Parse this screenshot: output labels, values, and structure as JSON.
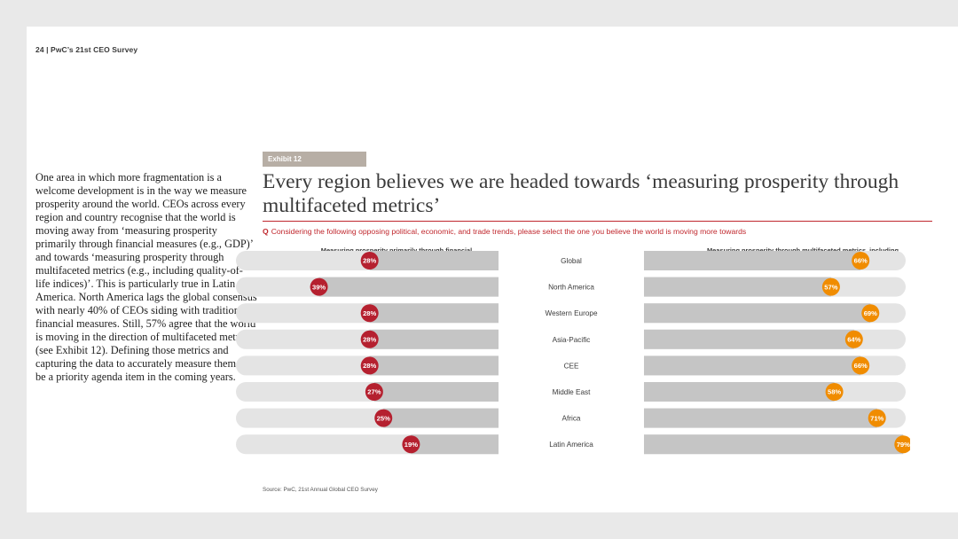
{
  "header": {
    "page_label": "24  |  PwC’s 21st CEO Survey"
  },
  "body_text": "One area in which more fragmentation is a welcome development is in the way we measure prosperity around the world. CEOs across every region and country recognise that the world is moving away from ‘measuring prosperity primarily through financial measures (e.g., GDP)’ and towards ‘measuring prosperity through multifaceted metrics (e.g., including quality-of-life indices)’. This is particularly true in Latin America. North America lags the global consensus with nearly 40% of CEOs siding with traditional financial measures. Still, 57% agree that the world is moving in the direction of multifaceted metrics (see Exhibit 12). Defining those metrics and capturing the data to accurately measure them will be a priority agenda item in the coming years.",
  "exhibit": {
    "tag": "Exhibit 12",
    "question_prefix": "Q",
    "question": "Considering the following opposing political, economic, and trade trends, please select the one you believe the world is moving more towards",
    "left_heading": "Measuring prosperity primarily through financial measures, e.g., GDP",
    "right_heading": "Measuring prosperity through multifaceted metrics, including quality-of-life indices",
    "source": "Source: PwC, 21st Annual Global CEO Survey"
  },
  "colors": {
    "left_dot": "#b5202f",
    "right_dot": "#f08c00",
    "accent": "#c0272d"
  },
  "chart_data": {
    "type": "bar",
    "title": "Every region believes we are headed towards ‘measuring prosperity through multifaceted metrics’",
    "categories": [
      "Global",
      "North America",
      "Western Europe",
      "Asia-Pacific",
      "CEE",
      "Middle East",
      "Africa",
      "Latin America"
    ],
    "series": [
      {
        "name": "Measuring prosperity primarily through financial measures, e.g., GDP",
        "values": [
          28,
          39,
          28,
          28,
          28,
          27,
          25,
          19
        ]
      },
      {
        "name": "Measuring prosperity through multifaceted metrics, including quality-of-life indices",
        "values": [
          66,
          57,
          69,
          64,
          66,
          58,
          71,
          79
        ]
      }
    ],
    "unit": "%",
    "xlim": [
      0,
      100
    ]
  }
}
